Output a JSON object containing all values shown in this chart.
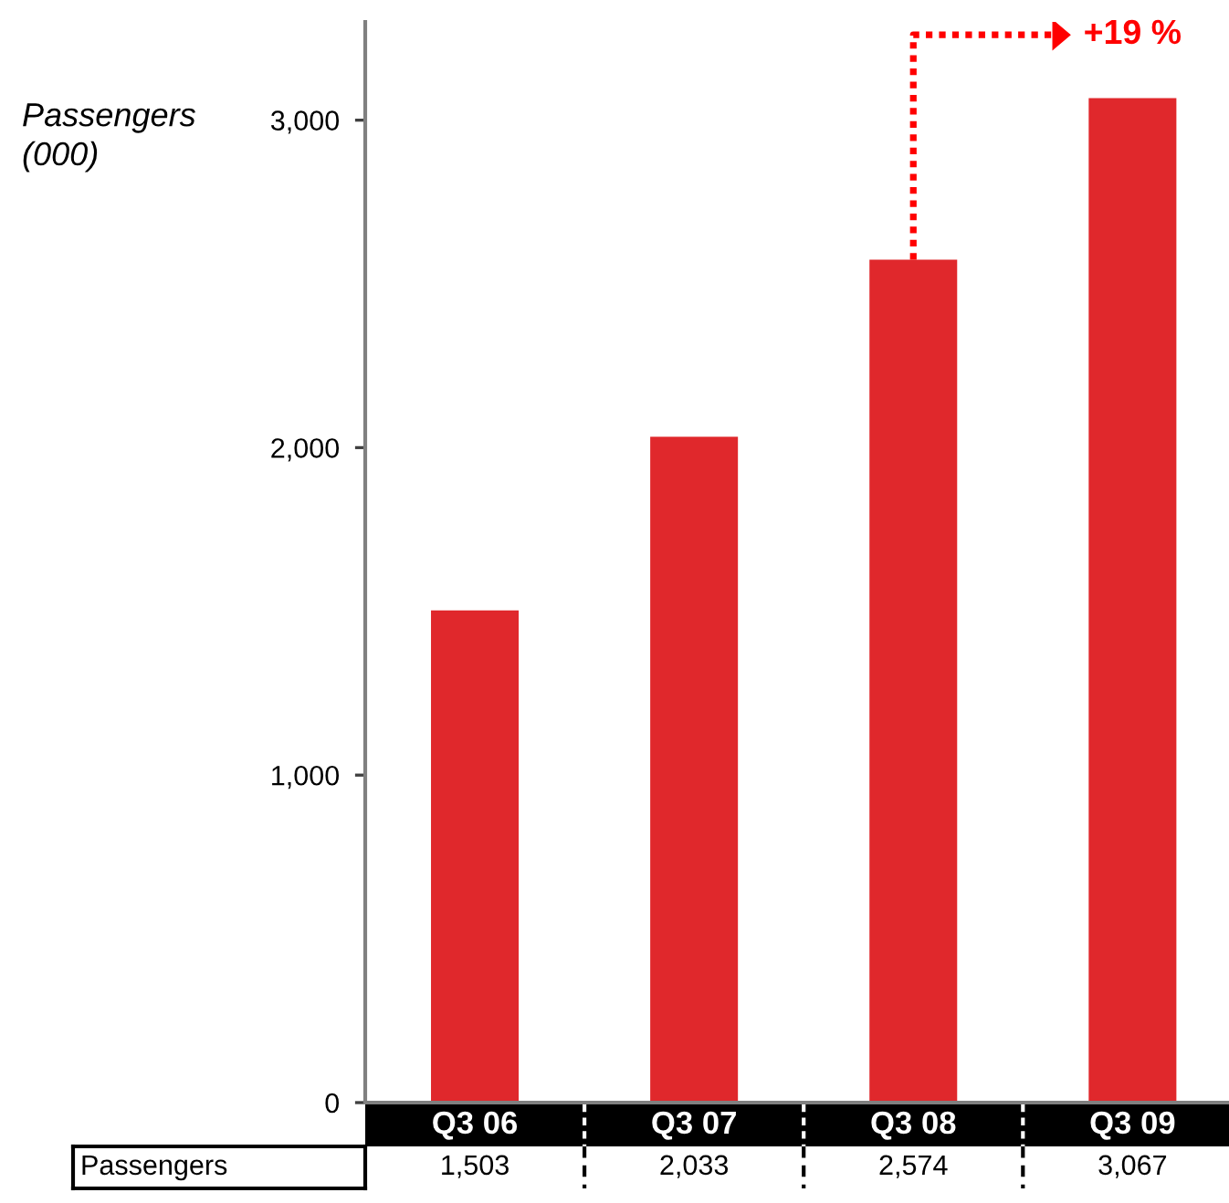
{
  "chart_data": {
    "type": "bar",
    "ylabel": "Passengers\n(000)",
    "categories": [
      "Q3 06",
      "Q3 07",
      "Q3 08",
      "Q3 09"
    ],
    "series": [
      {
        "name": "Passengers",
        "color": "#e0282c",
        "values": [
          1503,
          2033,
          2574,
          3067
        ],
        "value_labels": [
          "1,503",
          "2,033",
          "2,574",
          "3,067"
        ]
      }
    ],
    "ylim": [
      0,
      3300
    ],
    "yticks": [
      0,
      {
        "value": 1000,
        "label": "1,000"
      },
      {
        "value": 2000,
        "label": "2,000"
      },
      {
        "value": 3000,
        "label": "3,000"
      }
    ],
    "annotations": [
      "+19 %"
    ]
  }
}
